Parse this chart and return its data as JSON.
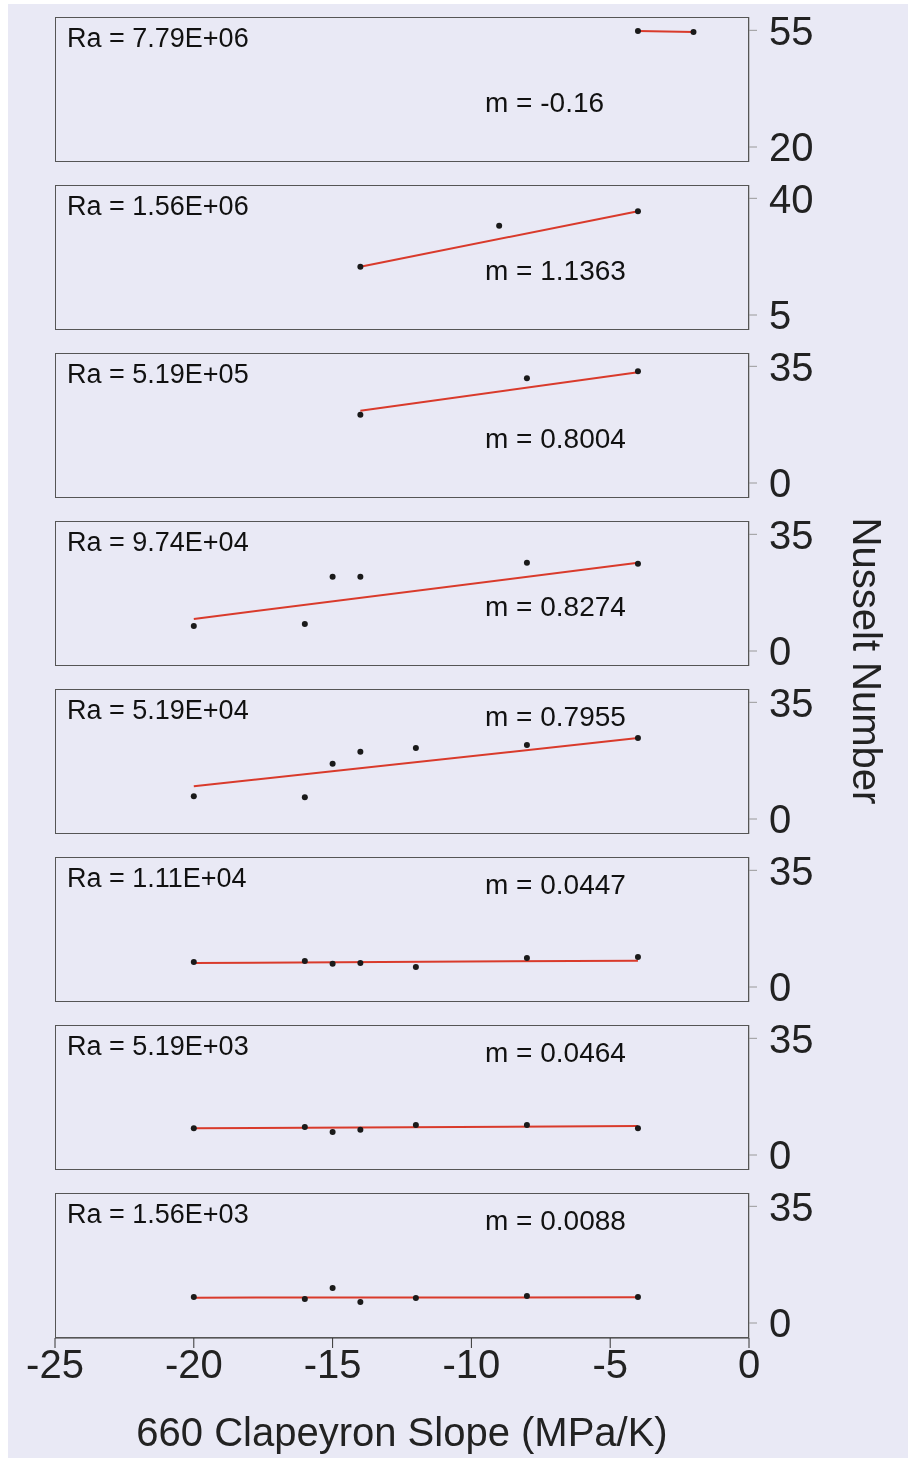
{
  "chart_data": [
    {
      "type": "scatter",
      "xlim": [
        -25,
        0
      ],
      "ylim": [
        15.5,
        59
      ],
      "yticks": [
        20,
        55
      ],
      "tick_labels": "y",
      "annotations": [
        "Ra = 7.79E+06",
        "m = -0.16"
      ],
      "series": [
        {
          "color": "#1a1a1a",
          "x": [
            -4,
            -2
          ],
          "values": [
            54.8,
            54.5
          ]
        },
        {
          "type": "line",
          "color": "#d93a2b",
          "x": [
            -4,
            -2
          ],
          "values": [
            54.8,
            54.5
          ]
        }
      ]
    },
    {
      "type": "scatter",
      "xlim": [
        -25,
        0
      ],
      "ylim": [
        0.5,
        44
      ],
      "yticks": [
        5,
        40
      ],
      "tick_labels": "y",
      "annotations": [
        "Ra = 1.56E+06",
        "m = 1.1363"
      ],
      "series": [
        {
          "color": "#1a1a1a",
          "x": [
            -14,
            -9,
            -4
          ],
          "values": [
            19.5,
            31.8,
            36.1
          ]
        },
        {
          "type": "line",
          "color": "#d93a2b",
          "x": [
            -14,
            -4
          ],
          "values": [
            19.5,
            36.1
          ]
        }
      ]
    },
    {
      "type": "scatter",
      "xlim": [
        -25,
        0
      ],
      "ylim": [
        -4.5,
        39
      ],
      "yticks": [
        0,
        35
      ],
      "tick_labels": "y",
      "annotations": [
        "Ra = 5.19E+05",
        "m = 0.8004"
      ],
      "series": [
        {
          "color": "#1a1a1a",
          "x": [
            -14,
            -8,
            -4
          ],
          "values": [
            20.5,
            31.4,
            33.5
          ]
        },
        {
          "type": "line",
          "color": "#d93a2b",
          "x": [
            -14,
            -4
          ],
          "values": [
            21.7,
            33.2
          ]
        }
      ]
    },
    {
      "type": "scatter",
      "xlim": [
        -25,
        0
      ],
      "ylim": [
        -4.5,
        39
      ],
      "yticks": [
        0,
        35
      ],
      "tick_labels": "y",
      "ylabel": "Nusselt Number",
      "annotations": [
        "Ra = 9.74E+04",
        "m = 0.8274"
      ],
      "series": [
        {
          "color": "#1a1a1a",
          "x": [
            -20,
            -16,
            -15,
            -14,
            -8,
            -4
          ],
          "values": [
            7.5,
            8.1,
            22.3,
            22.3,
            26.5,
            26.2
          ]
        },
        {
          "type": "line",
          "color": "#d93a2b",
          "x": [
            -20,
            -4
          ],
          "values": [
            9.6,
            26.5
          ]
        }
      ]
    },
    {
      "type": "scatter",
      "xlim": [
        -25,
        0
      ],
      "ylim": [
        -4.5,
        39
      ],
      "yticks": [
        0,
        35
      ],
      "tick_labels": "y",
      "annotations": [
        "Ra = 5.19E+04",
        "m = 0.7955"
      ],
      "series": [
        {
          "color": "#1a1a1a",
          "x": [
            -20,
            -16,
            -15,
            -14,
            -12,
            -8,
            -4
          ],
          "values": [
            6.8,
            6.5,
            16.6,
            20.2,
            21.3,
            22.2,
            24.3
          ]
        },
        {
          "type": "line",
          "color": "#d93a2b",
          "x": [
            -20,
            -4
          ],
          "values": [
            9.8,
            24.3
          ]
        }
      ]
    },
    {
      "type": "scatter",
      "xlim": [
        -25,
        0
      ],
      "ylim": [
        -4.5,
        39
      ],
      "yticks": [
        0,
        35
      ],
      "tick_labels": "y",
      "annotations": [
        "Ra = 1.11E+04",
        "m = 0.0447"
      ],
      "series": [
        {
          "color": "#1a1a1a",
          "x": [
            -20,
            -16,
            -15,
            -14,
            -12,
            -8,
            -4
          ],
          "values": [
            7.5,
            7.8,
            7,
            7.2,
            6,
            8.7,
            9
          ]
        },
        {
          "type": "line",
          "color": "#d93a2b",
          "x": [
            -20,
            -4
          ],
          "values": [
            7.2,
            7.9
          ]
        }
      ]
    },
    {
      "type": "scatter",
      "xlim": [
        -25,
        0
      ],
      "ylim": [
        -4.5,
        39
      ],
      "yticks": [
        0,
        35
      ],
      "tick_labels": "y",
      "annotations": [
        "Ra = 5.19E+03",
        "m = 0.0464"
      ],
      "series": [
        {
          "color": "#1a1a1a",
          "x": [
            -20,
            -16,
            -15,
            -14,
            -12,
            -8,
            -4
          ],
          "values": [
            8,
            8.4,
            6.9,
            7.6,
            9,
            9,
            8
          ]
        },
        {
          "type": "line",
          "color": "#d93a2b",
          "x": [
            -20,
            -4
          ],
          "values": [
            8,
            8.7
          ]
        }
      ]
    },
    {
      "type": "scatter",
      "xlim": [
        -25,
        0
      ],
      "ylim": [
        -4.5,
        39
      ],
      "yticks": [
        0,
        35
      ],
      "xticks": [
        -25,
        -20,
        -15,
        -10,
        -5,
        0
      ],
      "xlabel": "660 Clapeyron Slope (MPa/K)",
      "annotations": [
        "Ra = 1.56E+03",
        "m = 0.0088"
      ],
      "series": [
        {
          "color": "#1a1a1a",
          "x": [
            -20,
            -16,
            -15,
            -14,
            -12,
            -8,
            -4
          ],
          "values": [
            7.8,
            7.2,
            10.5,
            6.3,
            7.5,
            8.1,
            7.8
          ]
        },
        {
          "type": "line",
          "color": "#d93a2b",
          "x": [
            -20,
            -4
          ],
          "values": [
            7.6,
            7.7
          ]
        }
      ]
    }
  ]
}
